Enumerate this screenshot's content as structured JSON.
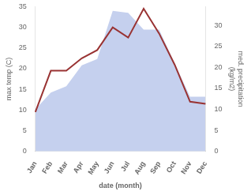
{
  "chart_data": {
    "type": "line",
    "categories": [
      "Jan",
      "Feb",
      "Mar",
      "Apr",
      "May",
      "Jun",
      "Jul",
      "Aug",
      "Sep",
      "Oct",
      "Nov",
      "Dec"
    ],
    "series": [
      {
        "type": "area",
        "color": "#c5d0ee",
        "axis": "y2",
        "values": [
          10.0,
          14.0,
          15.5,
          20.5,
          22.0,
          33.5,
          33.0,
          29.0,
          29.0,
          21.0,
          13.0,
          13.0
        ]
      },
      {
        "type": "line",
        "color": "#993333",
        "values": [
          9.5,
          19.5,
          19.5,
          22.5,
          24.5,
          30.0,
          27.5,
          34.5,
          28.5,
          21.0,
          12.0,
          11.5
        ]
      }
    ],
    "xlabel": "date (month)",
    "ylabel": "max temp (C)",
    "y2label": "med. precipitation\n(kg/m2)",
    "ylim": [
      0,
      35
    ],
    "yticks": [
      0,
      5,
      10,
      15,
      20,
      25,
      30,
      35
    ],
    "y2lim": [
      0,
      34.5
    ],
    "y2ticks": [
      0,
      5,
      10,
      15,
      20,
      25,
      30
    ],
    "grid": false
  }
}
